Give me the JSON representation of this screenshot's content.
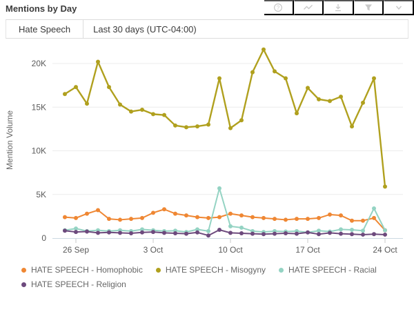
{
  "window": {
    "title": "Mentions by Day"
  },
  "toolbar": {
    "icons": [
      "help-icon",
      "line-chart-icon",
      "download-icon",
      "filter-icon",
      "chevron-down-icon"
    ]
  },
  "filter_bar": {
    "filter_label": "Hate Speech",
    "range_label": "Last 30 days (UTC-04:00)"
  },
  "chart_data": {
    "type": "line",
    "title": "Mentions by Day",
    "xlabel": "",
    "ylabel": "Mention Volume",
    "ylim": [
      0,
      22000
    ],
    "grid": true,
    "legend_position": "bottom",
    "num_points": 30,
    "y_ticks": {
      "values": [
        0,
        5000,
        10000,
        15000,
        20000
      ],
      "labels": [
        "0",
        "5K",
        "10K",
        "15K",
        "20K"
      ]
    },
    "x_ticks": {
      "indices": [
        1,
        8,
        15,
        22,
        29
      ],
      "labels": [
        "26 Sep",
        "3 Oct",
        "10 Oct",
        "17 Oct",
        "24 Oct"
      ]
    },
    "series": [
      {
        "name": "HATE SPEECH - Homophobic",
        "color": "#ef8733",
        "values": [
          2400,
          2300,
          2800,
          3200,
          2200,
          2100,
          2200,
          2300,
          2900,
          3300,
          2800,
          2600,
          2400,
          2300,
          2400,
          2800,
          2600,
          2400,
          2300,
          2200,
          2100,
          2200,
          2200,
          2300,
          2700,
          2600,
          2000,
          2000,
          2300,
          900
        ]
      },
      {
        "name": "HATE SPEECH - Misogyny",
        "color": "#b0a01e",
        "values": [
          16500,
          17300,
          15400,
          20200,
          17300,
          15300,
          14500,
          14700,
          14200,
          14100,
          12900,
          12700,
          12800,
          13000,
          18300,
          12600,
          13500,
          19000,
          21600,
          19100,
          18300,
          14300,
          17200,
          15900,
          15700,
          16200,
          12800,
          15500,
          18300,
          5900
        ]
      },
      {
        "name": "HATE SPEECH - Racial",
        "color": "#94d3c3",
        "values": [
          900,
          1100,
          800,
          900,
          800,
          900,
          800,
          1000,
          900,
          800,
          850,
          700,
          1000,
          800,
          5700,
          1350,
          1200,
          800,
          700,
          800,
          750,
          800,
          650,
          850,
          750,
          1000,
          950,
          850,
          3400,
          900
        ]
      },
      {
        "name": "HATE SPEECH - Religion",
        "color": "#6d4a7d",
        "values": [
          850,
          700,
          750,
          600,
          650,
          600,
          550,
          650,
          700,
          600,
          550,
          500,
          650,
          300,
          950,
          600,
          550,
          500,
          450,
          500,
          550,
          500,
          650,
          450,
          600,
          500,
          450,
          400,
          450,
          400
        ]
      }
    ]
  },
  "colors": {
    "grid_line": "#ececec",
    "axis_line": "#ccd9e2",
    "tick_mark": "#c9c9c9",
    "axis_text": "#595959",
    "icon_gray": "#c9c9c9"
  }
}
